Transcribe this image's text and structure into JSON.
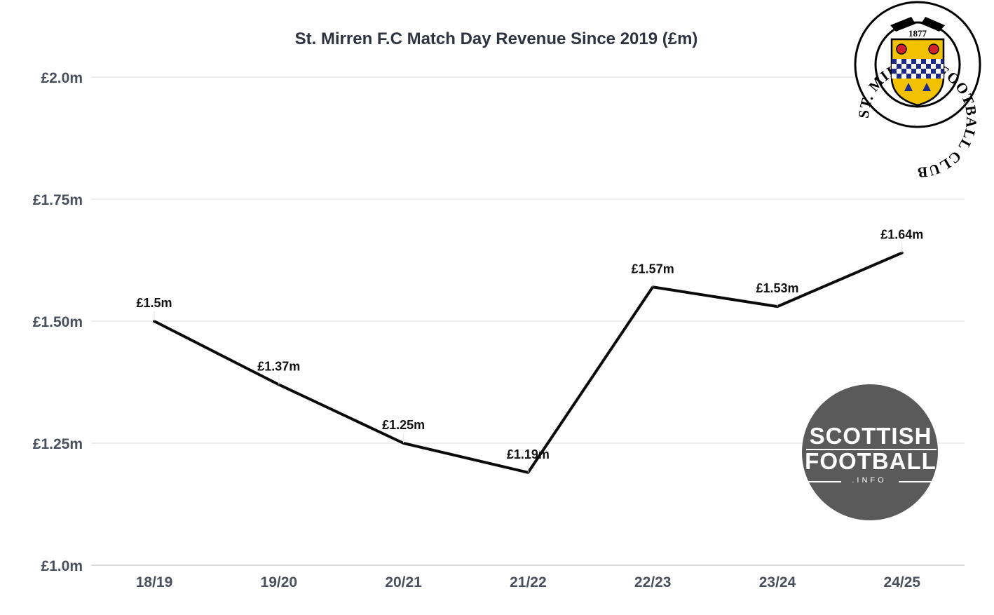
{
  "chart_data": {
    "type": "line",
    "title": "St. Mirren F.C Match Day Revenue Since 2019 (£m)",
    "xlabel": "",
    "ylabel": "",
    "categories": [
      "18/19",
      "19/20",
      "20/21",
      "21/22",
      "22/23",
      "23/24",
      "24/25"
    ],
    "series": [
      {
        "name": "Match Day Revenue",
        "values": [
          1.5,
          1.37,
          1.25,
          1.19,
          1.57,
          1.53,
          1.64
        ],
        "labels": [
          "£1.5m",
          "£1.37m",
          "£1.25m",
          "£1.19m",
          "£1.57m",
          "£1.53m",
          "£1.64m"
        ],
        "color": "#0a0a0a"
      }
    ],
    "ylim": [
      1.0,
      2.0
    ],
    "yticks": [
      1.0,
      1.25,
      1.5,
      1.75,
      2.0
    ],
    "ytick_labels": [
      "£1.0m",
      "£1.25m",
      "£1.50m",
      "£1.75m",
      "£2.0m"
    ],
    "grid": true
  },
  "logos": {
    "club_crest": {
      "text": "ST. MIRREN FOOTBALL CLUB",
      "year": "1877",
      "colors": {
        "shield": "#f2c200",
        "check": "#1d2a8c",
        "rose": "#d4202a",
        "ring": "#000000"
      }
    },
    "watermark": {
      "line1": "SCOTTISH",
      "line2": "FOOTBALL",
      "line3": ".INFO",
      "background": "#5a5a5a"
    }
  }
}
